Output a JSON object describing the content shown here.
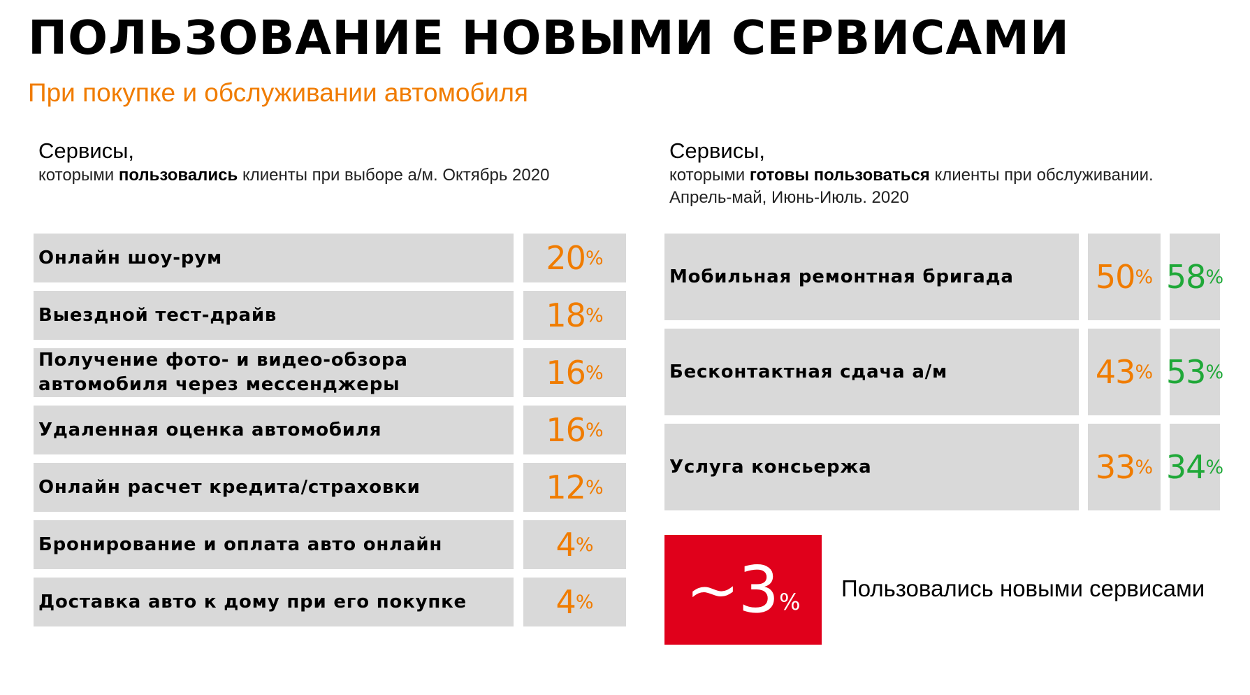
{
  "header": {
    "title": "ПОЛЬЗОВАНИЕ НОВЫМИ СЕРВИСАМИ",
    "subtitle": "При покупке и обслуживании автомобиля"
  },
  "left_panel": {
    "heading": "Сервисы,",
    "desc_before": "которыми ",
    "desc_bold": "пользовались",
    "desc_after": " клиенты при выборе а/м. Октябрь 2020",
    "rows": [
      {
        "label": "Онлайн шоу-рум",
        "value": "20",
        "unit": "%"
      },
      {
        "label": "Выездной тест-драйв",
        "value": "18",
        "unit": "%"
      },
      {
        "label": "Получение фото- и видео-обзора\nавтомобиля через мессенджеры",
        "value": "16",
        "unit": "%"
      },
      {
        "label": "Удаленная оценка автомобиля",
        "value": "16",
        "unit": "%"
      },
      {
        "label": "Онлайн расчет кредита/страховки",
        "value": "12",
        "unit": "%"
      },
      {
        "label": "Бронирование и оплата авто онлайн",
        "value": "4",
        "unit": "%"
      },
      {
        "label": "Доставка авто к дому при его покупке",
        "value": "4",
        "unit": "%"
      }
    ]
  },
  "right_panel": {
    "heading": "Сервисы,",
    "desc_before": "которыми ",
    "desc_bold": "готовы пользоваться",
    "desc_after": " клиенты при обслуживании.",
    "desc_line2": "Апрель-май, Июнь-Июль. 2020",
    "rows": [
      {
        "label": "Мобильная ремонтная бригада",
        "value_1": "50",
        "value_2": "58",
        "unit": "%"
      },
      {
        "label": "Бесконтактная сдача а/м",
        "value_1": "43",
        "value_2": "53",
        "unit": "%"
      },
      {
        "label": "Услуга консьержа",
        "value_1": "33",
        "value_2": "34",
        "unit": "%"
      }
    ]
  },
  "highlight": {
    "value": "~3",
    "unit": "%",
    "caption": "Пользовались новыми сервисами"
  },
  "colors": {
    "orange": "#f07c00",
    "green": "#1fa838",
    "red": "#e0001b",
    "cell_gray": "#d9d9d9"
  }
}
